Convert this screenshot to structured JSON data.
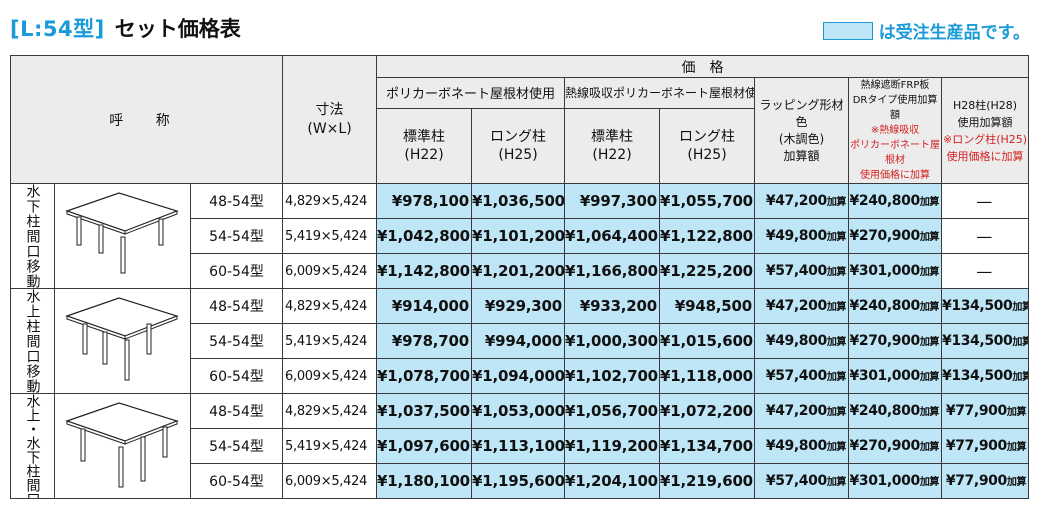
{
  "header": {
    "model": "[L:54型]",
    "title": "セット価格表"
  },
  "legend": {
    "swatch_color": "#bfe6f7",
    "text": "は受注生産品です。"
  },
  "table": {
    "headers": {
      "name": "呼 称",
      "dimension_line1": "寸法",
      "dimension_line2": "(W×L)",
      "price": "価　格",
      "group_polycarbonate": "ポリカーボネート屋根材使用",
      "group_heat_absorb": "熱線吸収ポリカーボネート屋根材使用",
      "standard_line1": "標準柱",
      "standard_line2": "(H22)",
      "long_line1": "ロング柱",
      "long_line2": "(H25)",
      "wrapping": [
        "ラッピング形材色",
        "(木調色)",
        "加算額"
      ],
      "frp": [
        "熱線遮断FRP板",
        "DRタイプ使用加算額",
        "※熱線吸収",
        "ポリカーボネート屋根材",
        "使用価格に加算"
      ],
      "h28": [
        "H28柱(H28)",
        "使用加算額",
        "※ロング柱(H25)",
        "使用価格に加算"
      ]
    },
    "add_suffix": "加算",
    "groups": [
      {
        "label": "水下柱間口移動",
        "illustration": "carport-diagram-1",
        "rows": [
          {
            "type": "48-54型",
            "dim": "4,829×5,424",
            "poly_std": "¥978,100",
            "poly_long": "¥1,036,500",
            "heat_std": "¥997,300",
            "heat_long": "¥1,055,700",
            "wrap": "¥47,200",
            "frp": "¥240,800",
            "h28": "—"
          },
          {
            "type": "54-54型",
            "dim": "5,419×5,424",
            "poly_std": "¥1,042,800",
            "poly_long": "¥1,101,200",
            "heat_std": "¥1,064,400",
            "heat_long": "¥1,122,800",
            "wrap": "¥49,800",
            "frp": "¥270,900",
            "h28": "—"
          },
          {
            "type": "60-54型",
            "dim": "6,009×5,424",
            "poly_std": "¥1,142,800",
            "poly_long": "¥1,201,200",
            "heat_std": "¥1,166,800",
            "heat_long": "¥1,225,200",
            "wrap": "¥57,400",
            "frp": "¥301,000",
            "h28": "—"
          }
        ]
      },
      {
        "label": "水上柱間口移動",
        "illustration": "carport-diagram-2",
        "rows": [
          {
            "type": "48-54型",
            "dim": "4,829×5,424",
            "poly_std": "¥914,000",
            "poly_long": "¥929,300",
            "heat_std": "¥933,200",
            "heat_long": "¥948,500",
            "wrap": "¥47,200",
            "frp": "¥240,800",
            "h28": "¥134,500"
          },
          {
            "type": "54-54型",
            "dim": "5,419×5,424",
            "poly_std": "¥978,700",
            "poly_long": "¥994,000",
            "heat_std": "¥1,000,300",
            "heat_long": "¥1,015,600",
            "wrap": "¥49,800",
            "frp": "¥270,900",
            "h28": "¥134,500"
          },
          {
            "type": "60-54型",
            "dim": "6,009×5,424",
            "poly_std": "¥1,078,700",
            "poly_long": "¥1,094,000",
            "heat_std": "¥1,102,700",
            "heat_long": "¥1,118,000",
            "wrap": "¥57,400",
            "frp": "¥301,000",
            "h28": "¥134,500"
          }
        ]
      },
      {
        "label_col1": "水上・水下柱",
        "label_col2": "間口移動",
        "illustration": "carport-diagram-3",
        "rows": [
          {
            "type": "48-54型",
            "dim": "4,829×5,424",
            "poly_std": "¥1,037,500",
            "poly_long": "¥1,053,000",
            "heat_std": "¥1,056,700",
            "heat_long": "¥1,072,200",
            "wrap": "¥47,200",
            "frp": "¥240,800",
            "h28": "¥77,900"
          },
          {
            "type": "54-54型",
            "dim": "5,419×5,424",
            "poly_std": "¥1,097,600",
            "poly_long": "¥1,113,100",
            "heat_std": "¥1,119,200",
            "heat_long": "¥1,134,700",
            "wrap": "¥49,800",
            "frp": "¥270,900",
            "h28": "¥77,900"
          },
          {
            "type": "60-54型",
            "dim": "6,009×5,424",
            "poly_std": "¥1,180,100",
            "poly_long": "¥1,195,600",
            "heat_std": "¥1,204,100",
            "heat_long": "¥1,219,600",
            "wrap": "¥57,400",
            "frp": "¥301,000",
            "h28": "¥77,900"
          }
        ]
      }
    ]
  }
}
